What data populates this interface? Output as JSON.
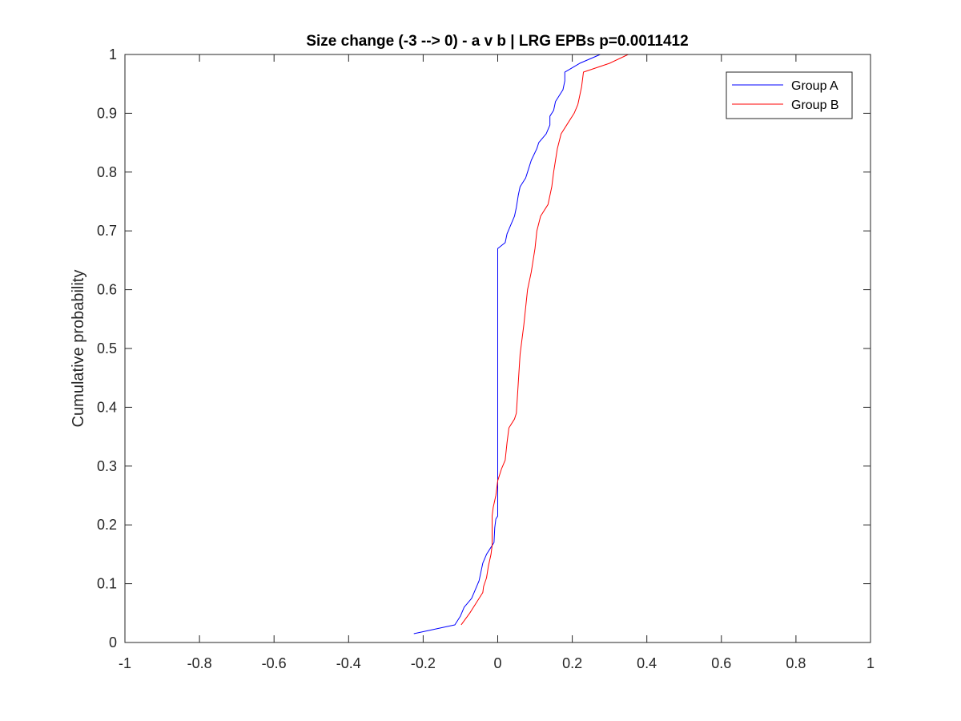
{
  "chart_data": {
    "type": "line",
    "title": "Size change (-3 --> 0) - a v b | LRG EPBs p=0.0011412",
    "xlabel": "",
    "ylabel": "Cumulative probability",
    "xlim": [
      -1,
      1
    ],
    "ylim": [
      0,
      1
    ],
    "xticks": [
      "-1",
      "-0.8",
      "-0.6",
      "-0.4",
      "-0.2",
      "0",
      "0.2",
      "0.4",
      "0.6",
      "0.8",
      "1"
    ],
    "yticks": [
      "0",
      "0.1",
      "0.2",
      "0.3",
      "0.4",
      "0.5",
      "0.6",
      "0.7",
      "0.8",
      "0.9",
      "1"
    ],
    "grid": false,
    "legend_position": "top-right",
    "colors": {
      "axis": "#262626",
      "legend_border": "#262626"
    },
    "series": [
      {
        "name": "Group A",
        "color": "#0000ff",
        "points": [
          [
            -0.225,
            0.015
          ],
          [
            -0.115,
            0.03
          ],
          [
            -0.1,
            0.045
          ],
          [
            -0.09,
            0.06
          ],
          [
            -0.07,
            0.075
          ],
          [
            -0.06,
            0.09
          ],
          [
            -0.05,
            0.105
          ],
          [
            -0.045,
            0.12
          ],
          [
            -0.04,
            0.135
          ],
          [
            -0.03,
            0.15
          ],
          [
            -0.02,
            0.16
          ],
          [
            -0.01,
            0.17
          ],
          [
            -0.008,
            0.195
          ],
          [
            -0.005,
            0.21
          ],
          [
            0.0,
            0.215
          ],
          [
            0.0,
            0.225
          ],
          [
            0.0,
            0.67
          ],
          [
            0.02,
            0.68
          ],
          [
            0.025,
            0.695
          ],
          [
            0.035,
            0.71
          ],
          [
            0.045,
            0.725
          ],
          [
            0.05,
            0.74
          ],
          [
            0.055,
            0.76
          ],
          [
            0.06,
            0.775
          ],
          [
            0.075,
            0.79
          ],
          [
            0.08,
            0.8
          ],
          [
            0.09,
            0.82
          ],
          [
            0.105,
            0.84
          ],
          [
            0.11,
            0.85
          ],
          [
            0.13,
            0.865
          ],
          [
            0.14,
            0.88
          ],
          [
            0.14,
            0.895
          ],
          [
            0.15,
            0.905
          ],
          [
            0.155,
            0.92
          ],
          [
            0.165,
            0.93
          ],
          [
            0.175,
            0.94
          ],
          [
            0.18,
            0.955
          ],
          [
            0.18,
            0.97
          ],
          [
            0.22,
            0.985
          ],
          [
            0.275,
            1.0
          ]
        ]
      },
      {
        "name": "Group B",
        "color": "#ff0000",
        "points": [
          [
            -0.098,
            0.03
          ],
          [
            -0.075,
            0.05
          ],
          [
            -0.055,
            0.07
          ],
          [
            -0.04,
            0.085
          ],
          [
            -0.038,
            0.095
          ],
          [
            -0.03,
            0.11
          ],
          [
            -0.025,
            0.13
          ],
          [
            -0.018,
            0.15
          ],
          [
            -0.015,
            0.165
          ],
          [
            -0.015,
            0.175
          ],
          [
            -0.015,
            0.215
          ],
          [
            -0.012,
            0.23
          ],
          [
            -0.005,
            0.25
          ],
          [
            0.0,
            0.275
          ],
          [
            0.01,
            0.295
          ],
          [
            0.02,
            0.31
          ],
          [
            0.025,
            0.34
          ],
          [
            0.03,
            0.365
          ],
          [
            0.045,
            0.38
          ],
          [
            0.05,
            0.39
          ],
          [
            0.055,
            0.44
          ],
          [
            0.06,
            0.49
          ],
          [
            0.065,
            0.515
          ],
          [
            0.07,
            0.54
          ],
          [
            0.075,
            0.57
          ],
          [
            0.08,
            0.6
          ],
          [
            0.09,
            0.63
          ],
          [
            0.1,
            0.67
          ],
          [
            0.105,
            0.7
          ],
          [
            0.115,
            0.725
          ],
          [
            0.135,
            0.745
          ],
          [
            0.145,
            0.775
          ],
          [
            0.15,
            0.8
          ],
          [
            0.155,
            0.82
          ],
          [
            0.16,
            0.84
          ],
          [
            0.17,
            0.865
          ],
          [
            0.185,
            0.88
          ],
          [
            0.205,
            0.9
          ],
          [
            0.215,
            0.915
          ],
          [
            0.225,
            0.945
          ],
          [
            0.23,
            0.97
          ],
          [
            0.3,
            0.985
          ],
          [
            0.35,
            1.0
          ]
        ]
      }
    ]
  }
}
